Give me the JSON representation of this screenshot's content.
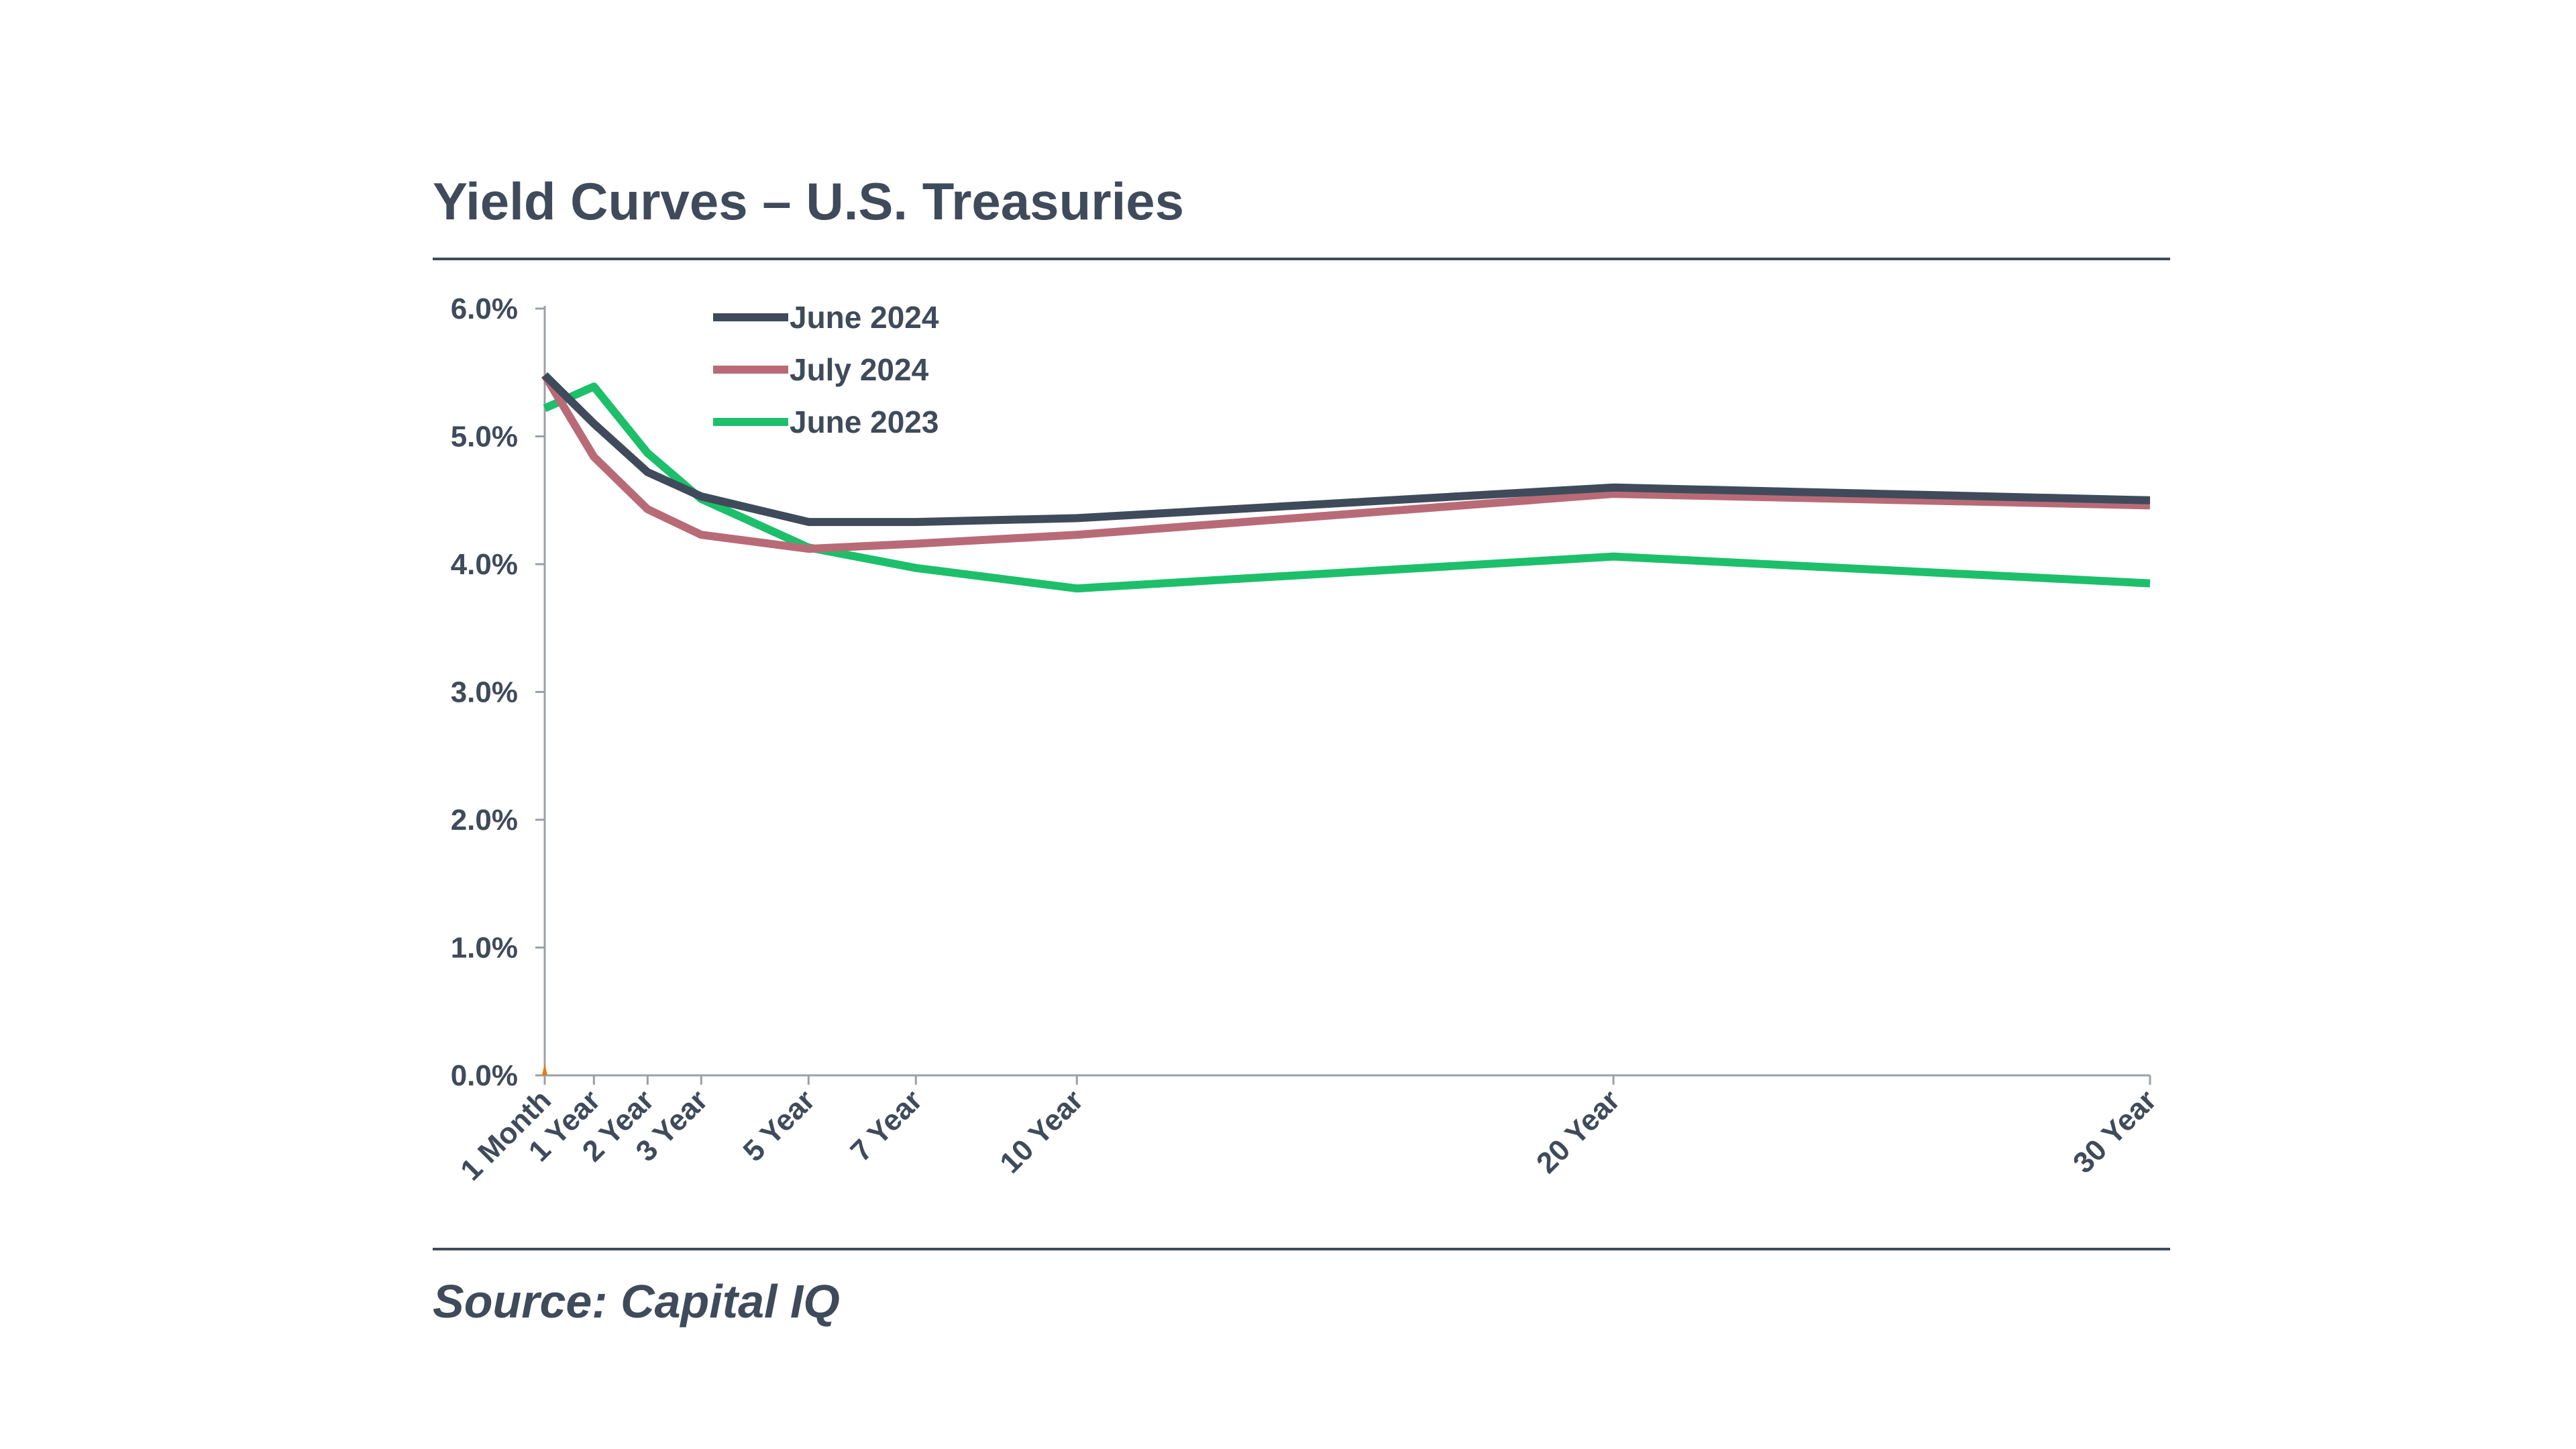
{
  "title": "Yield Curves – U.S. Treasuries",
  "source": "Source: Capital IQ",
  "chart_data": {
    "type": "line",
    "title": "Yield Curves – U.S. Treasuries",
    "xlabel": "",
    "ylabel": "",
    "x": [
      0.083,
      1,
      2,
      3,
      5,
      7,
      10,
      20,
      30
    ],
    "x_labels": [
      "1 Month",
      "1 Year",
      "2 Year",
      "3 Year",
      "5 Year",
      "7 Year",
      "10 Year",
      "20 Year",
      "30 Year"
    ],
    "ylim": [
      0,
      6
    ],
    "y_ticks": [
      0,
      1,
      2,
      3,
      4,
      5,
      6
    ],
    "y_tick_labels": [
      "0.0%",
      "1.0%",
      "2.0%",
      "3.0%",
      "4.0%",
      "5.0%",
      "6.0%"
    ],
    "grid": false,
    "legend_position": "top-left",
    "series": [
      {
        "name": "June 2024",
        "color": "#3f4b5b",
        "values": [
          5.48,
          5.1,
          4.72,
          4.53,
          4.33,
          4.33,
          4.36,
          4.6,
          4.5
        ]
      },
      {
        "name": "July 2024",
        "color": "#b86b77",
        "values": [
          5.48,
          4.84,
          4.43,
          4.23,
          4.12,
          4.16,
          4.23,
          4.55,
          4.46
        ]
      },
      {
        "name": "June 2023",
        "color": "#1dbf6b",
        "values": [
          5.22,
          5.39,
          4.87,
          4.51,
          4.13,
          3.97,
          3.81,
          4.06,
          3.85
        ]
      }
    ]
  }
}
